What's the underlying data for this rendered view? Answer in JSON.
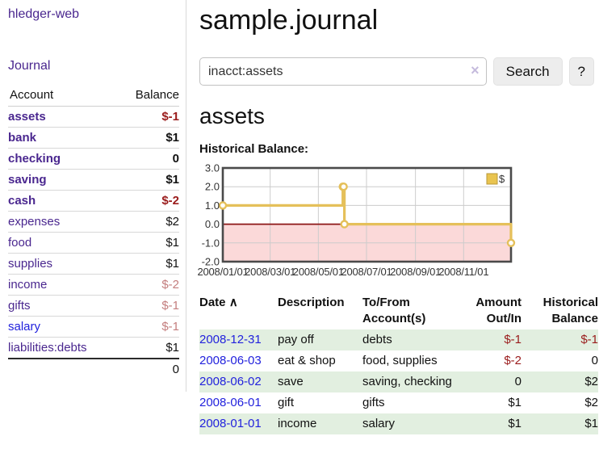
{
  "icons": {
    "clear_search": "×",
    "sort_ascending": "∧"
  },
  "colors": {
    "link_purple": "#4a278f",
    "link_blue": "#2222dd",
    "negative": "#9a1c1c",
    "negative_muted": "#c47e7e",
    "row_stripe_green": "#e2efe0"
  },
  "sidebar": {
    "brand": "hledger-web",
    "journal_label": "Journal",
    "accounts": {
      "col_account": "Account",
      "col_balance": "Balance",
      "total": "0",
      "rows": [
        {
          "name": "assets",
          "level": 1,
          "bold": true,
          "balance": "$-1",
          "balance_class": "neg"
        },
        {
          "name": "bank",
          "level": 2,
          "bold": true,
          "balance": "$1"
        },
        {
          "name": "checking",
          "level": 3,
          "bold": true,
          "balance": "0"
        },
        {
          "name": "saving",
          "level": 3,
          "bold": true,
          "balance": "$1"
        },
        {
          "name": "cash",
          "level": 2,
          "bold": true,
          "balance": "$-2",
          "balance_class": "neg"
        },
        {
          "name": "expenses",
          "level": 1,
          "bold": false,
          "balance": "$2"
        },
        {
          "name": "food",
          "level": 2,
          "bold": false,
          "balance": "$1"
        },
        {
          "name": "supplies",
          "level": 2,
          "bold": false,
          "balance": "$1"
        },
        {
          "name": "income",
          "level": 1,
          "bold": false,
          "balance": "$-2",
          "balance_class": "neg-muted"
        },
        {
          "name": "gifts",
          "level": 2,
          "bold": false,
          "balance": "$-1",
          "balance_class": "neg-muted"
        },
        {
          "name": "salary",
          "level": 2,
          "bold": false,
          "balance": "$-1",
          "balance_class": "neg-muted",
          "link_color": "blue"
        },
        {
          "name": "liabilities:debts",
          "level": 1,
          "bold": false,
          "balance": "$1"
        }
      ]
    }
  },
  "main": {
    "title": "sample.journal",
    "search": {
      "value": "inacct:assets",
      "button_label": "Search",
      "help_label": "?"
    },
    "account_heading": "assets",
    "chart_title": "Historical Balance:",
    "transactions": {
      "columns": [
        "Date",
        "Description",
        "To/From Account(s)",
        "Amount Out/In",
        "Historical Balance"
      ],
      "rows": [
        {
          "date": "2008-12-31",
          "description": "pay off",
          "accounts": "debts",
          "amount": "$-1",
          "amount_negative": true,
          "balance": "$-1",
          "balance_negative": true
        },
        {
          "date": "2008-06-03",
          "description": "eat & shop",
          "accounts": "food, supplies",
          "amount": "$-2",
          "amount_negative": true,
          "balance": "0"
        },
        {
          "date": "2008-06-02",
          "description": "save",
          "accounts": "saving, checking",
          "amount": "0",
          "balance": "$2"
        },
        {
          "date": "2008-06-01",
          "description": "gift",
          "accounts": "gifts",
          "amount": "$1",
          "balance": "$2"
        },
        {
          "date": "2008-01-01",
          "description": "income",
          "accounts": "salary",
          "amount": "$1",
          "balance": "$1"
        }
      ]
    }
  },
  "chart_data": {
    "type": "line",
    "step": true,
    "title": "Historical Balance:",
    "legend": [
      "$"
    ],
    "legend_position": "top-right",
    "grid": true,
    "x_range": [
      "2008-01-01",
      "2008-12-31"
    ],
    "ylim": [
      -2,
      3
    ],
    "y_ticks": [
      {
        "v": 3,
        "label": "3.0"
      },
      {
        "v": 2,
        "label": "2.0"
      },
      {
        "v": 1,
        "label": "1.0"
      },
      {
        "v": 0,
        "label": "0.0"
      },
      {
        "v": -1,
        "label": "-1.0"
      },
      {
        "v": -2,
        "label": "-2.0"
      }
    ],
    "x_ticks": [
      {
        "date": "2008-01-01",
        "label": "2008/01/01"
      },
      {
        "date": "2008-03-01",
        "label": "2008/03/01"
      },
      {
        "date": "2008-05-01",
        "label": "2008/05/01"
      },
      {
        "date": "2008-07-01",
        "label": "2008/07/01"
      },
      {
        "date": "2008-09-01",
        "label": "2008/09/01"
      },
      {
        "date": "2008-11-01",
        "label": "2008/11/01"
      }
    ],
    "series": [
      {
        "name": "$",
        "points": [
          {
            "date": "2008-01-01",
            "value": 1
          },
          {
            "date": "2008-06-01",
            "value": 2
          },
          {
            "date": "2008-06-02",
            "value": 2
          },
          {
            "date": "2008-06-03",
            "value": 0
          },
          {
            "date": "2008-12-31",
            "value": -1
          }
        ]
      }
    ],
    "colors": {
      "line": "#e5c05a",
      "marker_fill": "#ffffff",
      "negative_region": "#fbd9d9",
      "zero_line": "#8c1616",
      "grid": "#cccccc",
      "frame": "#4a4a4a",
      "legend_fill": "#e9c44f",
      "legend_border": "#b9983a",
      "tick_text": "#333333"
    }
  }
}
